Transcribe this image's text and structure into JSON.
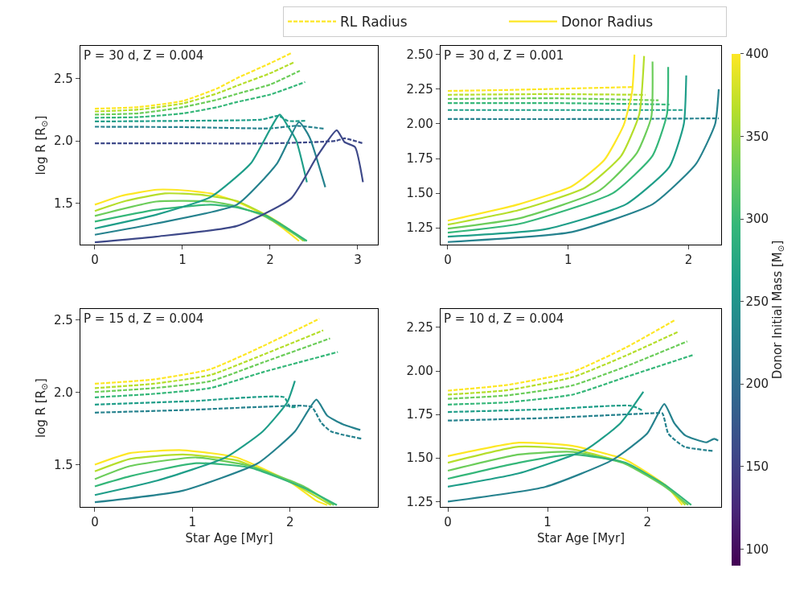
{
  "chart_data": [
    {
      "type": "line",
      "legend": "top",
      "ylabel": "log R [R$_{⊙}$]",
      "annotations": [
        "P = 30 d, Z = 0.004"
      ],
      "xlim": [
        -0.165,
        3.23
      ],
      "ylim": [
        1.17,
        2.76
      ],
      "xticks": [
        0,
        1,
        2,
        3
      ],
      "yticks": [
        {
          "value": 1.5,
          "label": "1.5"
        },
        {
          "value": 2.0,
          "label": "2.0"
        },
        {
          "value": 2.5,
          "label": "2.5"
        }
      ],
      "series": [
        {
          "name": "RL Radius",
          "line_style": "dashed",
          "color": "#fde725",
          "x": [
            0,
            0.5,
            1.01,
            1.4,
            1.62,
            2.0,
            2.24
          ],
          "values": [
            2.257,
            2.27,
            2.32,
            2.42,
            2.5,
            2.62,
            2.7
          ]
        },
        {
          "line_style": "dashed",
          "color": "#b5de2b",
          "x": [
            0,
            0.5,
            1.01,
            1.4,
            1.62,
            2.0,
            2.28
          ],
          "values": [
            2.235,
            2.25,
            2.3,
            2.38,
            2.44,
            2.54,
            2.63
          ]
        },
        {
          "line_style": "dashed",
          "color": "#6ccd5a",
          "x": [
            0,
            0.5,
            1.01,
            1.4,
            1.62,
            2.0,
            2.34
          ],
          "values": [
            2.21,
            2.22,
            2.27,
            2.33,
            2.375,
            2.45,
            2.56
          ]
        },
        {
          "line_style": "dashed",
          "color": "#35b779",
          "x": [
            0,
            0.5,
            1.01,
            1.4,
            1.62,
            2.0,
            2.4
          ],
          "values": [
            2.185,
            2.19,
            2.22,
            2.27,
            2.31,
            2.37,
            2.47
          ]
        },
        {
          "line_style": "dashed",
          "color": "#1f9e89",
          "x": [
            0,
            1.0,
            1.9,
            2.1,
            2.2,
            2.4
          ],
          "values": [
            2.155,
            2.16,
            2.17,
            2.2,
            2.16,
            2.16
          ]
        },
        {
          "line_style": "dashed",
          "color": "#26828e",
          "x": [
            0,
            1.0,
            2.0,
            2.3,
            2.63
          ],
          "values": [
            2.113,
            2.11,
            2.1,
            2.12,
            2.096
          ]
        },
        {
          "line_style": "dashed",
          "color": "#3e4989",
          "x": [
            0,
            1.0,
            2.0,
            2.75,
            2.85,
            3.06
          ],
          "values": [
            1.98,
            1.98,
            1.98,
            2.0,
            2.02,
            1.98
          ]
        },
        {
          "name": "Donor Radius",
          "line_style": "solid",
          "color": "#fde725",
          "x": [
            0,
            0.3,
            0.71,
            1.0,
            1.32,
            1.6,
            1.93,
            2.15,
            2.33
          ],
          "values": [
            1.49,
            1.56,
            1.61,
            1.605,
            1.58,
            1.52,
            1.41,
            1.3,
            1.2
          ]
        },
        {
          "line_style": "solid",
          "color": "#b5de2b",
          "x": [
            0,
            0.35,
            0.8,
            1.2,
            1.62,
            2.0,
            2.2,
            2.38
          ],
          "values": [
            1.44,
            1.52,
            1.58,
            1.57,
            1.52,
            1.39,
            1.3,
            1.2
          ]
        },
        {
          "line_style": "solid",
          "color": "#6ccd5a",
          "x": [
            0,
            0.7,
            1.32,
            1.6,
            1.93,
            2.2,
            2.4
          ],
          "values": [
            1.4,
            1.515,
            1.515,
            1.48,
            1.4,
            1.29,
            1.2
          ]
        },
        {
          "line_style": "solid",
          "color": "#35b779",
          "x": [
            0,
            0.7,
            1.32,
            1.6,
            1.93,
            2.2,
            2.42
          ],
          "values": [
            1.355,
            1.45,
            1.49,
            1.47,
            1.41,
            1.3,
            1.2
          ]
        },
        {
          "line_style": "solid",
          "color": "#1f9e89",
          "x": [
            0,
            0.7,
            1.32,
            1.78,
            2.11,
            2.2,
            2.3,
            2.42
          ],
          "values": [
            1.3,
            1.41,
            1.55,
            1.82,
            2.21,
            2.12,
            2.0,
            1.67
          ]
        },
        {
          "line_style": "solid",
          "color": "#26828e",
          "x": [
            0,
            0.7,
            1.62,
            2.08,
            2.33,
            2.45,
            2.63
          ],
          "values": [
            1.25,
            1.34,
            1.49,
            1.82,
            2.15,
            2.03,
            1.63
          ]
        },
        {
          "line_style": "solid",
          "color": "#3e4989",
          "x": [
            0,
            0.7,
            1.62,
            2.24,
            2.54,
            2.76,
            2.85,
            2.97,
            3.06
          ],
          "values": [
            1.19,
            1.235,
            1.32,
            1.54,
            1.88,
            2.085,
            1.99,
            1.95,
            1.67
          ]
        }
      ]
    },
    {
      "type": "line",
      "annotations": [
        "P = 30 d, Z = 0.001"
      ],
      "clabel": "Donor Initial Mass [M$_{⊙}$]",
      "clim": [
        90,
        400
      ],
      "cticks": [
        100,
        150,
        200,
        250,
        300,
        350,
        400
      ],
      "xlim": [
        -0.06,
        2.27
      ],
      "ylim": [
        1.128,
        2.564
      ],
      "xticks": [
        0,
        1,
        2
      ],
      "yticks": [
        {
          "value": 1.25,
          "label": "1.25"
        },
        {
          "value": 1.5,
          "label": "1.50"
        },
        {
          "value": 1.75,
          "label": "1.75"
        },
        {
          "value": 2.0,
          "label": "2.00"
        },
        {
          "value": 2.25,
          "label": "2.25"
        },
        {
          "value": 2.5,
          "label": "2.50"
        }
      ],
      "series": [
        {
          "line_style": "dashed",
          "color": "#fde725",
          "x": [
            0,
            0.5,
            1.0,
            1.53
          ],
          "values": [
            2.238,
            2.245,
            2.255,
            2.266
          ]
        },
        {
          "line_style": "dashed",
          "color": "#b5de2b",
          "x": [
            0,
            0.8,
            1.64
          ],
          "values": [
            2.21,
            2.215,
            2.21
          ]
        },
        {
          "line_style": "dashed",
          "color": "#6ccd5a",
          "x": [
            0,
            0.9,
            1.75
          ],
          "values": [
            2.18,
            2.185,
            2.17
          ]
        },
        {
          "line_style": "dashed",
          "color": "#35b779",
          "x": [
            0,
            0.9,
            1.84
          ],
          "values": [
            2.15,
            2.15,
            2.14
          ]
        },
        {
          "line_style": "dashed",
          "color": "#1f9e89",
          "x": [
            0,
            1.0,
            1.97
          ],
          "values": [
            2.1,
            2.1,
            2.1
          ]
        },
        {
          "line_style": "dashed",
          "color": "#26828e",
          "x": [
            0,
            1.1,
            2.25
          ],
          "values": [
            2.035,
            2.035,
            2.04
          ]
        },
        {
          "line_style": "solid",
          "color": "#fde725",
          "x": [
            0,
            0.59,
            1.03,
            1.3,
            1.46,
            1.53,
            1.55
          ],
          "values": [
            1.302,
            1.42,
            1.55,
            1.74,
            1.99,
            2.23,
            2.5
          ]
        },
        {
          "line_style": "solid",
          "color": "#b5de2b",
          "x": [
            0,
            0.6,
            1.14,
            1.44,
            1.59,
            1.63
          ],
          "values": [
            1.273,
            1.38,
            1.54,
            1.77,
            2.07,
            2.49
          ]
        },
        {
          "line_style": "solid",
          "color": "#6ccd5a",
          "x": [
            0,
            0.6,
            1.26,
            1.57,
            1.69,
            1.7
          ],
          "values": [
            1.244,
            1.32,
            1.52,
            1.79,
            2.05,
            2.45
          ]
        },
        {
          "line_style": "solid",
          "color": "#35b779",
          "x": [
            0,
            0.6,
            1.37,
            1.7,
            1.82,
            1.83
          ],
          "values": [
            1.215,
            1.28,
            1.5,
            1.77,
            2.07,
            2.41
          ]
        },
        {
          "line_style": "solid",
          "color": "#1f9e89",
          "x": [
            0,
            0.81,
            1.48,
            1.84,
            1.96,
            1.98
          ],
          "values": [
            1.186,
            1.24,
            1.42,
            1.69,
            2.0,
            2.35
          ]
        },
        {
          "line_style": "solid",
          "color": "#26828e",
          "x": [
            0,
            1.03,
            1.7,
            2.06,
            2.22,
            2.25
          ],
          "values": [
            1.148,
            1.22,
            1.42,
            1.71,
            2.0,
            2.25
          ]
        }
      ]
    },
    {
      "type": "line",
      "ylabel": "log R [R$_{⊙}$]",
      "xlabel": "Star Age [Myr]",
      "annotations": [
        "P = 15 d, Z = 0.004"
      ],
      "xlim": [
        -0.148,
        2.9
      ],
      "ylim": [
        1.206,
        2.578
      ],
      "xticks": [
        0,
        1,
        2
      ],
      "yticks": [
        {
          "value": 1.5,
          "label": "1.5"
        },
        {
          "value": 2.0,
          "label": "2.0"
        },
        {
          "value": 2.5,
          "label": "2.5"
        }
      ],
      "series": [
        {
          "line_style": "dashed",
          "color": "#fde725",
          "x": [
            0,
            0.6,
            1.18,
            1.72,
            2.3
          ],
          "values": [
            2.06,
            2.09,
            2.16,
            2.32,
            2.51
          ]
        },
        {
          "line_style": "dashed",
          "color": "#b5de2b",
          "x": [
            0,
            0.6,
            1.18,
            1.72,
            2.34
          ],
          "values": [
            2.03,
            2.06,
            2.12,
            2.26,
            2.43
          ]
        },
        {
          "line_style": "dashed",
          "color": "#6ccd5a",
          "x": [
            0,
            0.6,
            1.18,
            1.72,
            2.41
          ],
          "values": [
            2.003,
            2.03,
            2.077,
            2.207,
            2.374
          ]
        },
        {
          "line_style": "dashed",
          "color": "#35b779",
          "x": [
            0,
            0.6,
            1.18,
            1.72,
            2.49
          ],
          "values": [
            1.966,
            1.99,
            2.03,
            2.14,
            2.28
          ]
        },
        {
          "line_style": "dashed",
          "color": "#1f9e89",
          "x": [
            0,
            1.0,
            1.94,
            2.0,
            2.08
          ],
          "values": [
            1.916,
            1.94,
            1.966,
            1.9,
            1.9
          ]
        },
        {
          "line_style": "dashed",
          "color": "#26828e",
          "x": [
            0,
            1.0,
            1.72,
            2.22,
            2.32,
            2.42,
            2.73
          ],
          "values": [
            1.86,
            1.88,
            1.9,
            1.9,
            1.79,
            1.73,
            1.68
          ]
        },
        {
          "line_style": "solid",
          "color": "#fde725",
          "x": [
            0,
            0.36,
            0.9,
            1.45,
            2.0,
            2.27,
            2.38
          ],
          "values": [
            1.5,
            1.58,
            1.6,
            1.55,
            1.38,
            1.25,
            1.22
          ]
        },
        {
          "line_style": "solid",
          "color": "#b5de2b",
          "x": [
            0,
            0.36,
            0.9,
            1.45,
            2.0,
            2.42
          ],
          "values": [
            1.454,
            1.54,
            1.57,
            1.53,
            1.38,
            1.22
          ]
        },
        {
          "line_style": "solid",
          "color": "#6ccd5a",
          "x": [
            0,
            0.36,
            1.04,
            1.59,
            2.14,
            2.45
          ],
          "values": [
            1.4,
            1.49,
            1.55,
            1.49,
            1.35,
            1.22
          ]
        },
        {
          "line_style": "solid",
          "color": "#35b779",
          "x": [
            0,
            0.36,
            1.04,
            1.59,
            2.14,
            2.48
          ],
          "values": [
            1.35,
            1.42,
            1.51,
            1.48,
            1.34,
            1.22
          ]
        },
        {
          "line_style": "solid",
          "color": "#1f9e89",
          "x": [
            0,
            0.64,
            1.34,
            1.72,
            1.97,
            2.05
          ],
          "values": [
            1.29,
            1.39,
            1.55,
            1.73,
            1.93,
            2.08
          ]
        },
        {
          "line_style": "solid",
          "color": "#26828e",
          "x": [
            0,
            0.9,
            1.67,
            2.05,
            2.27,
            2.38,
            2.54,
            2.72
          ],
          "values": [
            1.24,
            1.32,
            1.51,
            1.73,
            1.95,
            1.84,
            1.78,
            1.74
          ]
        }
      ]
    },
    {
      "type": "line",
      "xlabel": "Star Age [Myr]",
      "annotations": [
        "P = 10 d, Z = 0.004"
      ],
      "xlim": [
        -0.073,
        2.74
      ],
      "ylim": [
        1.218,
        2.356
      ],
      "xticks": [
        0,
        1,
        2
      ],
      "yticks": [
        {
          "value": 1.25,
          "label": "1.25"
        },
        {
          "value": 1.5,
          "label": "1.50"
        },
        {
          "value": 1.75,
          "label": "1.75"
        },
        {
          "value": 2.0,
          "label": "2.00"
        },
        {
          "value": 2.25,
          "label": "2.25"
        }
      ],
      "series": [
        {
          "line_style": "dashed",
          "color": "#fde725",
          "x": [
            0,
            0.6,
            1.25,
            1.78,
            2.27
          ],
          "values": [
            1.887,
            1.92,
            1.995,
            2.133,
            2.29
          ]
        },
        {
          "line_style": "dashed",
          "color": "#b5de2b",
          "x": [
            0,
            0.6,
            1.25,
            1.78,
            2.31
          ],
          "values": [
            1.864,
            1.89,
            1.964,
            2.087,
            2.225
          ]
        },
        {
          "line_style": "dashed",
          "color": "#6ccd5a",
          "x": [
            0,
            0.6,
            1.25,
            1.78,
            2.4
          ],
          "values": [
            1.84,
            1.86,
            1.917,
            2.025,
            2.17
          ]
        },
        {
          "line_style": "dashed",
          "color": "#35b779",
          "x": [
            0,
            0.6,
            1.25,
            1.78,
            2.47
          ],
          "values": [
            1.807,
            1.82,
            1.864,
            1.964,
            2.094
          ]
        },
        {
          "line_style": "dashed",
          "color": "#1f9e89",
          "x": [
            0,
            1.0,
            1.84,
            1.96
          ],
          "values": [
            1.764,
            1.78,
            1.8,
            1.77
          ]
        },
        {
          "line_style": "dashed",
          "color": "#26828e",
          "x": [
            0,
            1.0,
            2.05,
            2.15,
            2.21,
            2.37,
            2.67
          ],
          "values": [
            1.715,
            1.73,
            1.757,
            1.757,
            1.64,
            1.565,
            1.54
          ]
        },
        {
          "line_style": "solid",
          "color": "#fde725",
          "x": [
            0,
            0.71,
            1.25,
            1.78,
            2.19,
            2.35
          ],
          "values": [
            1.511,
            1.588,
            1.57,
            1.49,
            1.34,
            1.23
          ]
        },
        {
          "line_style": "solid",
          "color": "#b5de2b",
          "x": [
            0,
            0.71,
            1.25,
            1.78,
            2.19,
            2.38
          ],
          "values": [
            1.473,
            1.565,
            1.55,
            1.47,
            1.34,
            1.23
          ]
        },
        {
          "line_style": "solid",
          "color": "#6ccd5a",
          "x": [
            0,
            0.71,
            1.25,
            1.78,
            2.19,
            2.41
          ],
          "values": [
            1.427,
            1.52,
            1.535,
            1.466,
            1.33,
            1.23
          ]
        },
        {
          "line_style": "solid",
          "color": "#35b779",
          "x": [
            0,
            0.71,
            1.25,
            1.78,
            2.19,
            2.44
          ],
          "values": [
            1.381,
            1.473,
            1.52,
            1.473,
            1.34,
            1.23
          ]
        },
        {
          "line_style": "solid",
          "color": "#1f9e89",
          "x": [
            0,
            0.71,
            1.39,
            1.73,
            1.96
          ],
          "values": [
            1.335,
            1.412,
            1.55,
            1.7,
            1.88
          ]
        },
        {
          "line_style": "solid",
          "color": "#26828e",
          "x": [
            0,
            0.98,
            1.65,
            2.0,
            2.17,
            2.27,
            2.38,
            2.59,
            2.67,
            2.71
          ],
          "values": [
            1.25,
            1.335,
            1.489,
            1.642,
            1.81,
            1.7,
            1.63,
            1.59,
            1.61,
            1.6
          ]
        }
      ]
    }
  ]
}
